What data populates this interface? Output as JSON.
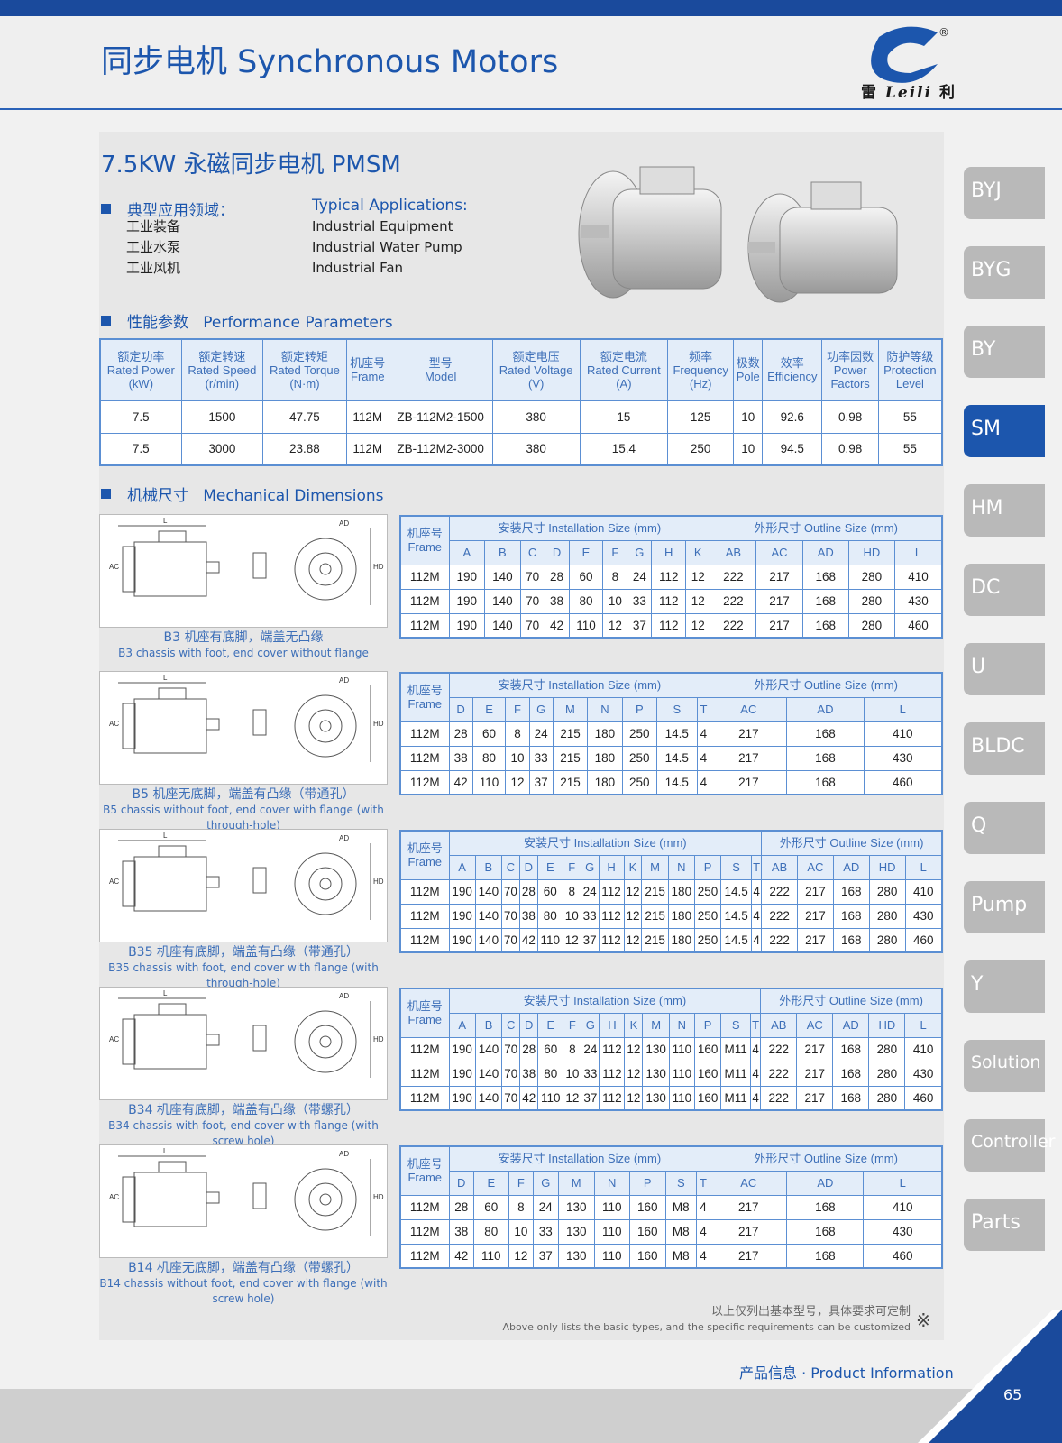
{
  "header": {
    "title": "同步电机  Synchronous Motors",
    "logo_text": "雷 Leili 利",
    "logo_mark": "®",
    "accent": "#1c56ad"
  },
  "product": {
    "title": "7.5KW 永磁同步电机 PMSM"
  },
  "applications": {
    "heading_cn": "典型应用领域：",
    "heading_en": "Typical Applications:",
    "items_cn": [
      "工业装备",
      "工业水泵",
      "工业风机"
    ],
    "items_en": [
      "Industrial Equipment",
      "Industrial Water Pump",
      "Industrial Fan"
    ]
  },
  "performance": {
    "heading_cn": "性能参数",
    "heading_en": "Performance Parameters",
    "headers": [
      [
        "额定功率",
        "Rated Power",
        "(kW)"
      ],
      [
        "额定转速",
        "Rated Speed",
        "(r/min)"
      ],
      [
        "额定转矩",
        "Rated Torque",
        "(N·m)"
      ],
      [
        "机座号",
        "Frame",
        ""
      ],
      [
        "型号",
        "Model",
        ""
      ],
      [
        "额定电压",
        "Rated Voltage",
        "(V)"
      ],
      [
        "额定电流",
        "Rated Current",
        "(A)"
      ],
      [
        "频率",
        "Frequency",
        "(Hz)"
      ],
      [
        "极数",
        "Pole",
        ""
      ],
      [
        "效率",
        "Efficiency",
        ""
      ],
      [
        "功率因数",
        "Power",
        "Factors"
      ],
      [
        "防护等级",
        "Protection",
        "Level"
      ]
    ],
    "rows": [
      [
        "7.5",
        "1500",
        "47.75",
        "112M",
        "ZB-112M2-1500",
        "380",
        "15",
        "125",
        "10",
        "92.6",
        "0.98",
        "55"
      ],
      [
        "7.5",
        "3000",
        "23.88",
        "112M",
        "ZB-112M2-3000",
        "380",
        "15.4",
        "250",
        "10",
        "94.5",
        "0.98",
        "55"
      ]
    ]
  },
  "mechanical": {
    "heading_cn": "机械尺寸",
    "heading_en": "Mechanical Dimensions",
    "frame_cn": "机座号",
    "frame_en": "Frame",
    "install": "安装尺寸 Installation Size (mm)",
    "outline": "外形尺寸 Outline Size (mm)",
    "tables": [
      {
        "caption_cn": "B3 机座有底脚，端盖无凸缘",
        "caption_en": "B3 chassis with foot, end cover without flange",
        "install_cols": [
          "A",
          "B",
          "C",
          "D",
          "E",
          "F",
          "G",
          "H",
          "K"
        ],
        "outline_cols": [
          "AB",
          "AC",
          "AD",
          "HD",
          "L"
        ],
        "rows": [
          [
            "112M",
            "190",
            "140",
            "70",
            "28",
            "60",
            "8",
            "24",
            "112",
            "12",
            "222",
            "217",
            "168",
            "280",
            "410"
          ],
          [
            "112M",
            "190",
            "140",
            "70",
            "38",
            "80",
            "10",
            "33",
            "112",
            "12",
            "222",
            "217",
            "168",
            "280",
            "430"
          ],
          [
            "112M",
            "190",
            "140",
            "70",
            "42",
            "110",
            "12",
            "37",
            "112",
            "12",
            "222",
            "217",
            "168",
            "280",
            "460"
          ]
        ]
      },
      {
        "caption_cn": "B5 机座无底脚，端盖有凸缘（带通孔）",
        "caption_en": "B5 chassis without foot, end cover with flange (with through-hole)",
        "install_cols": [
          "D",
          "E",
          "F",
          "G",
          "M",
          "N",
          "P",
          "S",
          "T"
        ],
        "outline_cols": [
          "AC",
          "AD",
          "L"
        ],
        "rows": [
          [
            "112M",
            "28",
            "60",
            "8",
            "24",
            "215",
            "180",
            "250",
            "14.5",
            "4",
            "217",
            "168",
            "410"
          ],
          [
            "112M",
            "38",
            "80",
            "10",
            "33",
            "215",
            "180",
            "250",
            "14.5",
            "4",
            "217",
            "168",
            "430"
          ],
          [
            "112M",
            "42",
            "110",
            "12",
            "37",
            "215",
            "180",
            "250",
            "14.5",
            "4",
            "217",
            "168",
            "460"
          ]
        ]
      },
      {
        "caption_cn": "B35 机座有底脚，端盖有凸缘（带通孔）",
        "caption_en": "B35 chassis with foot, end cover with flange (with through-hole)",
        "install_cols": [
          "A",
          "B",
          "C",
          "D",
          "E",
          "F",
          "G",
          "H",
          "K",
          "M",
          "N",
          "P",
          "S",
          "T"
        ],
        "outline_cols": [
          "AB",
          "AC",
          "AD",
          "HD",
          "L"
        ],
        "rows": [
          [
            "112M",
            "190",
            "140",
            "70",
            "28",
            "60",
            "8",
            "24",
            "112",
            "12",
            "215",
            "180",
            "250",
            "14.5",
            "4",
            "222",
            "217",
            "168",
            "280",
            "410"
          ],
          [
            "112M",
            "190",
            "140",
            "70",
            "38",
            "80",
            "10",
            "33",
            "112",
            "12",
            "215",
            "180",
            "250",
            "14.5",
            "4",
            "222",
            "217",
            "168",
            "280",
            "430"
          ],
          [
            "112M",
            "190",
            "140",
            "70",
            "42",
            "110",
            "12",
            "37",
            "112",
            "12",
            "215",
            "180",
            "250",
            "14.5",
            "4",
            "222",
            "217",
            "168",
            "280",
            "460"
          ]
        ]
      },
      {
        "caption_cn": "B34 机座有底脚，端盖有凸缘（带螺孔）",
        "caption_en": "B34 chassis with foot, end cover with flange (with screw hole)",
        "install_cols": [
          "A",
          "B",
          "C",
          "D",
          "E",
          "F",
          "G",
          "H",
          "K",
          "M",
          "N",
          "P",
          "S",
          "T"
        ],
        "outline_cols": [
          "AB",
          "AC",
          "AD",
          "HD",
          "L"
        ],
        "rows": [
          [
            "112M",
            "190",
            "140",
            "70",
            "28",
            "60",
            "8",
            "24",
            "112",
            "12",
            "130",
            "110",
            "160",
            "M11",
            "4",
            "222",
            "217",
            "168",
            "280",
            "410"
          ],
          [
            "112M",
            "190",
            "140",
            "70",
            "38",
            "80",
            "10",
            "33",
            "112",
            "12",
            "130",
            "110",
            "160",
            "M11",
            "4",
            "222",
            "217",
            "168",
            "280",
            "430"
          ],
          [
            "112M",
            "190",
            "140",
            "70",
            "42",
            "110",
            "12",
            "37",
            "112",
            "12",
            "130",
            "110",
            "160",
            "M11",
            "4",
            "222",
            "217",
            "168",
            "280",
            "460"
          ]
        ]
      },
      {
        "caption_cn": "B14 机座无底脚，端盖有凸缘（带螺孔）",
        "caption_en": "B14 chassis without foot, end cover with flange (with screw hole)",
        "install_cols": [
          "D",
          "E",
          "F",
          "G",
          "M",
          "N",
          "P",
          "S",
          "T"
        ],
        "outline_cols": [
          "AC",
          "AD",
          "L"
        ],
        "rows": [
          [
            "112M",
            "28",
            "60",
            "8",
            "24",
            "130",
            "110",
            "160",
            "M8",
            "4",
            "217",
            "168",
            "410"
          ],
          [
            "112M",
            "38",
            "80",
            "10",
            "33",
            "130",
            "110",
            "160",
            "M8",
            "4",
            "217",
            "168",
            "430"
          ],
          [
            "112M",
            "42",
            "110",
            "12",
            "37",
            "130",
            "110",
            "160",
            "M8",
            "4",
            "217",
            "168",
            "460"
          ]
        ]
      }
    ]
  },
  "side_tabs": [
    {
      "label": "BYJ"
    },
    {
      "label": "BYG"
    },
    {
      "label": "BY"
    },
    {
      "label": "SM",
      "active": true
    },
    {
      "label": "HM"
    },
    {
      "label": "DC"
    },
    {
      "label": "U"
    },
    {
      "label": "BLDC"
    },
    {
      "label": "Q"
    },
    {
      "label": "Pump"
    },
    {
      "label": "Y"
    },
    {
      "label": "Solution"
    },
    {
      "label": "Controller"
    },
    {
      "label": "Parts"
    }
  ],
  "footer": {
    "note_cn": "以上仅列出基本型号，具体要求可定制",
    "note_en": "Above only lists the basic types, and the specific requirements can be customized",
    "note_icon": "※",
    "product_info": "产品信息 · Product Information",
    "page": "65"
  }
}
